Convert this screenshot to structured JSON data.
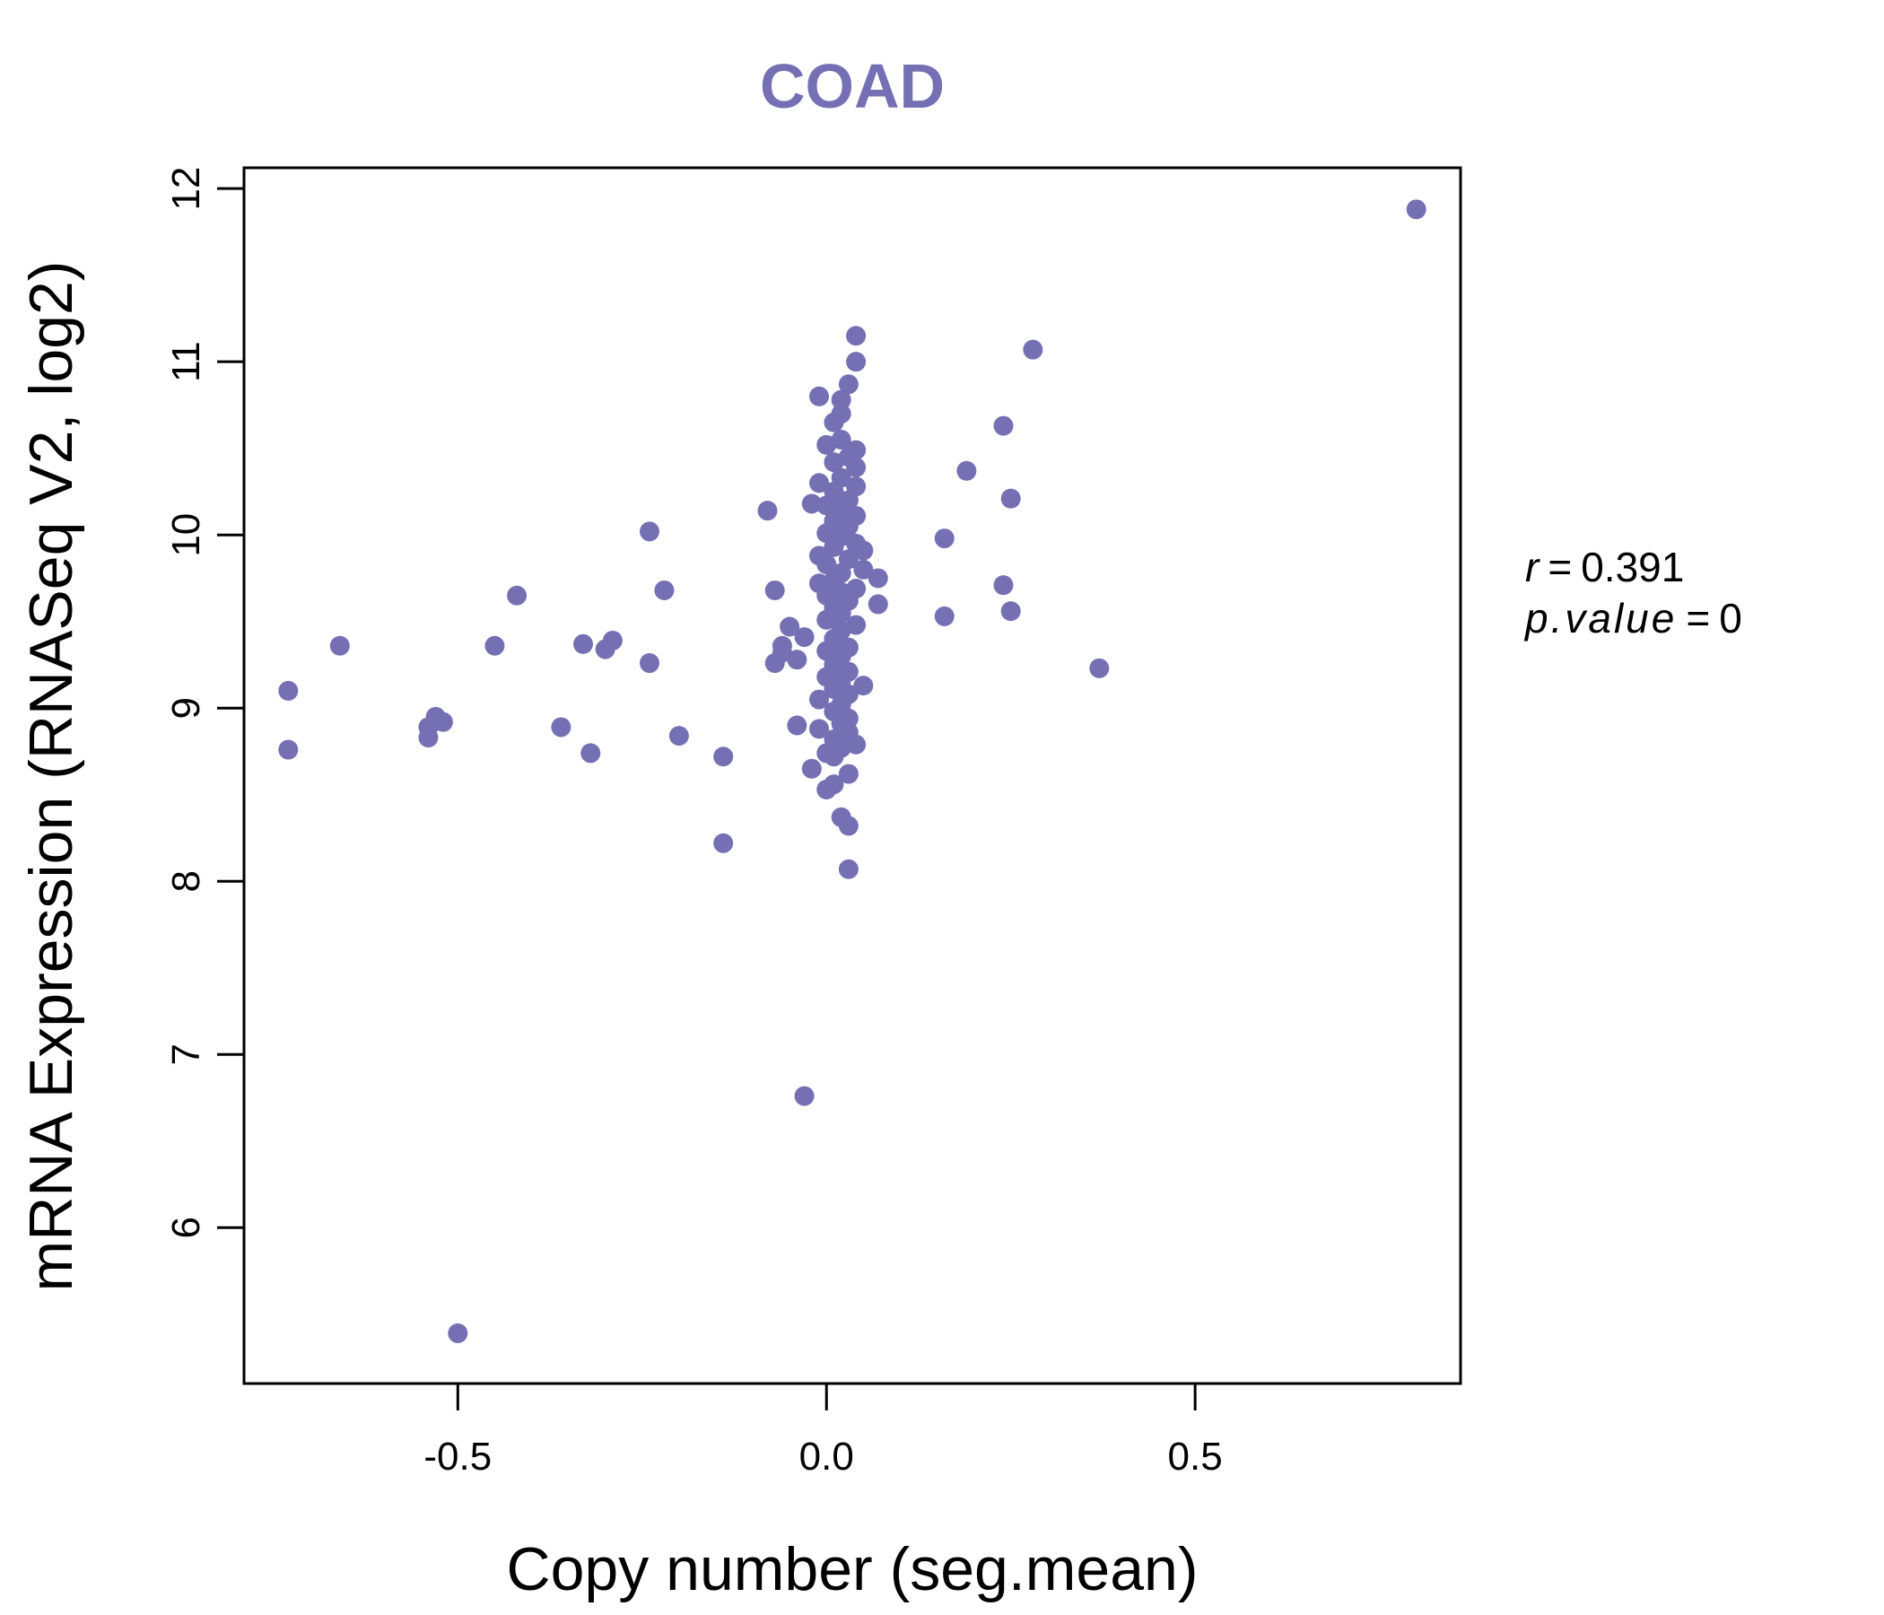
{
  "chart_data": {
    "type": "scatter",
    "title": "COAD",
    "xlabel": "Copy number (seg.mean)",
    "ylabel": "mRNA Expression (RNASeq V2, log2)",
    "xlim": [
      -0.79,
      0.86
    ],
    "ylim": [
      5.1,
      12.12
    ],
    "xticks": [
      -0.5,
      0.0,
      0.5
    ],
    "xtick_labels": [
      "-0.5",
      "0.0",
      "0.5"
    ],
    "yticks": [
      6,
      7,
      8,
      9,
      10,
      11,
      12
    ],
    "ytick_labels": [
      "6",
      "7",
      "8",
      "9",
      "10",
      "11",
      "12"
    ],
    "grid": false,
    "legend": "none",
    "point_color": "#7570b3",
    "title_color": "#7570b3",
    "annotation": {
      "r_label": "r",
      "r_value": "0.391",
      "p_label": "p.value",
      "p_value": "0",
      "eq": "="
    },
    "points": [
      {
        "x": 0.8,
        "y": 11.88
      },
      {
        "x": 0.28,
        "y": 11.07
      },
      {
        "x": 0.04,
        "y": 11.15
      },
      {
        "x": 0.04,
        "y": 11.0
      },
      {
        "x": 0.03,
        "y": 10.87
      },
      {
        "x": -0.01,
        "y": 10.8
      },
      {
        "x": 0.02,
        "y": 10.78
      },
      {
        "x": 0.02,
        "y": 10.7
      },
      {
        "x": 0.01,
        "y": 10.65
      },
      {
        "x": 0.24,
        "y": 10.63
      },
      {
        "x": 0.02,
        "y": 10.55
      },
      {
        "x": 0.0,
        "y": 10.52
      },
      {
        "x": 0.04,
        "y": 10.49
      },
      {
        "x": 0.03,
        "y": 10.45
      },
      {
        "x": 0.01,
        "y": 10.42
      },
      {
        "x": 0.04,
        "y": 10.39
      },
      {
        "x": 0.19,
        "y": 10.37
      },
      {
        "x": 0.02,
        "y": 10.33
      },
      {
        "x": -0.01,
        "y": 10.3
      },
      {
        "x": 0.04,
        "y": 10.28
      },
      {
        "x": 0.01,
        "y": 10.25
      },
      {
        "x": 0.25,
        "y": 10.21
      },
      {
        "x": 0.03,
        "y": 10.2
      },
      {
        "x": -0.02,
        "y": 10.18
      },
      {
        "x": 0.0,
        "y": 10.17
      },
      {
        "x": 0.02,
        "y": 10.15
      },
      {
        "x": -0.08,
        "y": 10.14
      },
      {
        "x": 0.04,
        "y": 10.11
      },
      {
        "x": 0.01,
        "y": 10.08
      },
      {
        "x": 0.03,
        "y": 10.05
      },
      {
        "x": -0.24,
        "y": 10.02
      },
      {
        "x": 0.0,
        "y": 10.01
      },
      {
        "x": 0.02,
        "y": 9.99
      },
      {
        "x": 0.16,
        "y": 9.98
      },
      {
        "x": 0.04,
        "y": 9.95
      },
      {
        "x": 0.01,
        "y": 9.93
      },
      {
        "x": 0.05,
        "y": 9.91
      },
      {
        "x": -0.01,
        "y": 9.88
      },
      {
        "x": 0.03,
        "y": 9.86
      },
      {
        "x": 0.0,
        "y": 9.83
      },
      {
        "x": 0.05,
        "y": 9.8
      },
      {
        "x": 0.02,
        "y": 9.78
      },
      {
        "x": 0.07,
        "y": 9.75
      },
      {
        "x": 0.01,
        "y": 9.74
      },
      {
        "x": -0.01,
        "y": 9.72
      },
      {
        "x": 0.24,
        "y": 9.71
      },
      {
        "x": 0.04,
        "y": 9.69
      },
      {
        "x": -0.22,
        "y": 9.68
      },
      {
        "x": -0.07,
        "y": 9.68
      },
      {
        "x": 0.02,
        "y": 9.67
      },
      {
        "x": 0.0,
        "y": 9.65
      },
      {
        "x": -0.42,
        "y": 9.65
      },
      {
        "x": 0.03,
        "y": 9.62
      },
      {
        "x": 0.07,
        "y": 9.6
      },
      {
        "x": 0.01,
        "y": 9.58
      },
      {
        "x": 0.25,
        "y": 9.56
      },
      {
        "x": 0.02,
        "y": 9.55
      },
      {
        "x": 0.16,
        "y": 9.53
      },
      {
        "x": 0.0,
        "y": 9.51
      },
      {
        "x": 0.04,
        "y": 9.48
      },
      {
        "x": -0.05,
        "y": 9.47
      },
      {
        "x": 0.02,
        "y": 9.45
      },
      {
        "x": -0.03,
        "y": 9.41
      },
      {
        "x": 0.01,
        "y": 9.4
      },
      {
        "x": -0.29,
        "y": 9.39
      },
      {
        "x": -0.33,
        "y": 9.37
      },
      {
        "x": -0.66,
        "y": 9.36
      },
      {
        "x": -0.45,
        "y": 9.36
      },
      {
        "x": -0.06,
        "y": 9.36
      },
      {
        "x": 0.03,
        "y": 9.35
      },
      {
        "x": -0.3,
        "y": 9.34
      },
      {
        "x": 0.0,
        "y": 9.33
      },
      {
        "x": -0.06,
        "y": 9.32
      },
      {
        "x": 0.02,
        "y": 9.3
      },
      {
        "x": -0.04,
        "y": 9.28
      },
      {
        "x": -0.24,
        "y": 9.26
      },
      {
        "x": -0.07,
        "y": 9.26
      },
      {
        "x": 0.01,
        "y": 9.25
      },
      {
        "x": 0.37,
        "y": 9.23
      },
      {
        "x": 0.03,
        "y": 9.21
      },
      {
        "x": 0.0,
        "y": 9.18
      },
      {
        "x": 0.02,
        "y": 9.16
      },
      {
        "x": 0.05,
        "y": 9.13
      },
      {
        "x": 0.01,
        "y": 9.11
      },
      {
        "x": -0.73,
        "y": 9.1
      },
      {
        "x": 0.03,
        "y": 9.08
      },
      {
        "x": -0.01,
        "y": 9.05
      },
      {
        "x": 0.02,
        "y": 9.02
      },
      {
        "x": 0.01,
        "y": 8.98
      },
      {
        "x": -0.53,
        "y": 8.95
      },
      {
        "x": 0.03,
        "y": 8.94
      },
      {
        "x": -0.52,
        "y": 8.92
      },
      {
        "x": 0.02,
        "y": 8.91
      },
      {
        "x": -0.04,
        "y": 8.9
      },
      {
        "x": -0.36,
        "y": 8.89
      },
      {
        "x": -0.54,
        "y": 8.89
      },
      {
        "x": -0.01,
        "y": 8.88
      },
      {
        "x": 0.03,
        "y": 8.86
      },
      {
        "x": -0.2,
        "y": 8.84
      },
      {
        "x": -0.54,
        "y": 8.83
      },
      {
        "x": 0.01,
        "y": 8.82
      },
      {
        "x": 0.04,
        "y": 8.79
      },
      {
        "x": 0.02,
        "y": 8.77
      },
      {
        "x": -0.73,
        "y": 8.76
      },
      {
        "x": 0.0,
        "y": 8.74
      },
      {
        "x": -0.32,
        "y": 8.74
      },
      {
        "x": 0.01,
        "y": 8.72
      },
      {
        "x": -0.14,
        "y": 8.72
      },
      {
        "x": -0.02,
        "y": 8.65
      },
      {
        "x": 0.03,
        "y": 8.62
      },
      {
        "x": 0.01,
        "y": 8.56
      },
      {
        "x": 0.0,
        "y": 8.53
      },
      {
        "x": 0.02,
        "y": 8.37
      },
      {
        "x": 0.03,
        "y": 8.32
      },
      {
        "x": -0.14,
        "y": 8.22
      },
      {
        "x": 0.03,
        "y": 8.07
      },
      {
        "x": -0.03,
        "y": 6.76
      },
      {
        "x": -0.5,
        "y": 5.39
      }
    ]
  }
}
